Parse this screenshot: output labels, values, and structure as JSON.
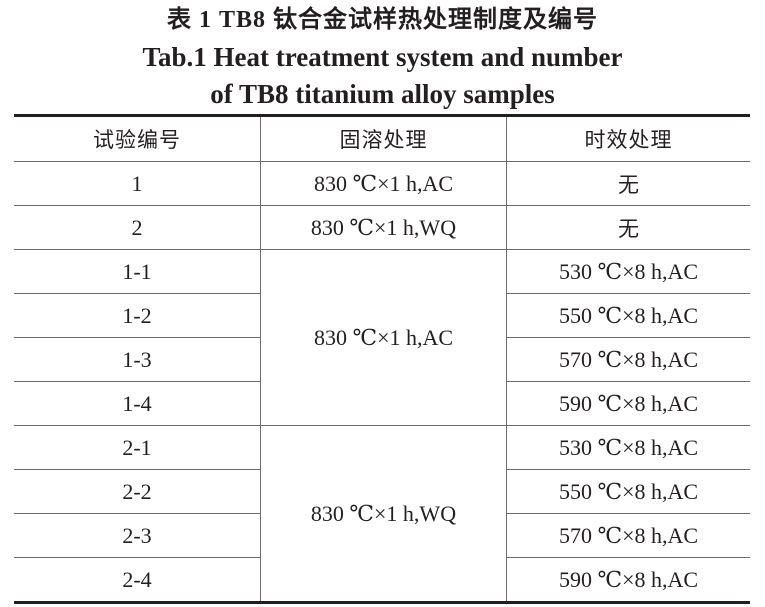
{
  "title": {
    "zh": "表 1  TB8 钛合金试样热处理制度及编号",
    "en_line1": "Tab.1  Heat treatment system and number",
    "en_line2": "of TB8 titanium alloy samples"
  },
  "table": {
    "headers": [
      "试验编号",
      "固溶处理",
      "时效处理"
    ],
    "rows": [
      {
        "id": "1",
        "solution": "830 ℃×1 h,AC",
        "aging": "无"
      },
      {
        "id": "2",
        "solution": "830 ℃×1 h,WQ",
        "aging": "无"
      },
      {
        "id": "1-1",
        "solution": "830 ℃×1 h,AC",
        "aging": "530 ℃×8 h,AC"
      },
      {
        "id": "1-2",
        "aging": "550 ℃×8 h,AC"
      },
      {
        "id": "1-3",
        "aging": "570 ℃×8 h,AC"
      },
      {
        "id": "1-4",
        "aging": "590 ℃×8 h,AC"
      },
      {
        "id": "2-1",
        "solution": "830 ℃×1 h,WQ",
        "aging": "530 ℃×8 h,AC"
      },
      {
        "id": "2-2",
        "aging": "550 ℃×8 h,AC"
      },
      {
        "id": "2-3",
        "aging": "570 ℃×8 h,AC"
      },
      {
        "id": "2-4",
        "aging": "590 ℃×8 h,AC"
      }
    ]
  }
}
